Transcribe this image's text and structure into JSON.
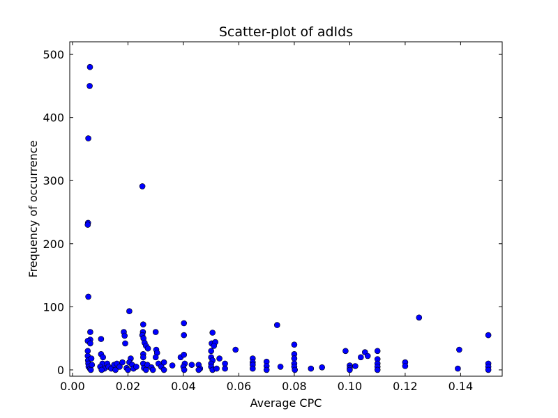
{
  "chart_data": {
    "type": "scatter",
    "title": "Scatter-plot of adIds",
    "xlabel": "Average CPC",
    "ylabel": "Frequency of occurrence",
    "xlim": [
      -0.001,
      0.155
    ],
    "ylim": [
      -10,
      520
    ],
    "xticks": [
      0.0,
      0.02,
      0.04,
      0.06,
      0.08,
      0.1,
      0.12,
      0.14
    ],
    "xtick_labels": [
      "0.00",
      "0.02",
      "0.04",
      "0.06",
      "0.08",
      "0.10",
      "0.12",
      "0.14"
    ],
    "yticks": [
      0,
      100,
      200,
      300,
      400,
      500
    ],
    "ytick_labels": [
      "0",
      "100",
      "200",
      "300",
      "400",
      "500"
    ],
    "grid": false,
    "marker_color": "#0000ff",
    "marker_edge_color": "#000000",
    "points": [
      [
        0.0063,
        480
      ],
      [
        0.0062,
        450
      ],
      [
        0.0057,
        367
      ],
      [
        0.0056,
        233
      ],
      [
        0.0055,
        230
      ],
      [
        0.0057,
        116
      ],
      [
        0.0064,
        60
      ],
      [
        0.0064,
        48
      ],
      [
        0.0055,
        46
      ],
      [
        0.0064,
        42
      ],
      [
        0.0055,
        30
      ],
      [
        0.0055,
        22
      ],
      [
        0.0056,
        15
      ],
      [
        0.0057,
        10
      ],
      [
        0.0058,
        5
      ],
      [
        0.0063,
        2
      ],
      [
        0.0066,
        0
      ],
      [
        0.007,
        8
      ],
      [
        0.0068,
        18
      ],
      [
        0.0103,
        49
      ],
      [
        0.0103,
        25
      ],
      [
        0.011,
        20
      ],
      [
        0.0108,
        10
      ],
      [
        0.01,
        5
      ],
      [
        0.0115,
        2
      ],
      [
        0.0105,
        0
      ],
      [
        0.0125,
        10
      ],
      [
        0.013,
        5
      ],
      [
        0.014,
        2
      ],
      [
        0.015,
        8
      ],
      [
        0.0155,
        0
      ],
      [
        0.016,
        10
      ],
      [
        0.017,
        5
      ],
      [
        0.018,
        12
      ],
      [
        0.0185,
        60
      ],
      [
        0.0188,
        54
      ],
      [
        0.019,
        42
      ],
      [
        0.0195,
        3
      ],
      [
        0.02,
        0
      ],
      [
        0.0205,
        93
      ],
      [
        0.021,
        18
      ],
      [
        0.0205,
        12
      ],
      [
        0.0215,
        8
      ],
      [
        0.022,
        2
      ],
      [
        0.023,
        5
      ],
      [
        0.0252,
        291
      ],
      [
        0.0255,
        72
      ],
      [
        0.0254,
        60
      ],
      [
        0.0252,
        55
      ],
      [
        0.0256,
        50
      ],
      [
        0.026,
        43
      ],
      [
        0.0265,
        38
      ],
      [
        0.0272,
        34
      ],
      [
        0.0255,
        25
      ],
      [
        0.0255,
        20
      ],
      [
        0.0255,
        10
      ],
      [
        0.0258,
        3
      ],
      [
        0.0265,
        0
      ],
      [
        0.027,
        8
      ],
      [
        0.0285,
        4
      ],
      [
        0.029,
        0
      ],
      [
        0.03,
        60
      ],
      [
        0.0302,
        32
      ],
      [
        0.0305,
        27
      ],
      [
        0.03,
        20
      ],
      [
        0.031,
        10
      ],
      [
        0.032,
        5
      ],
      [
        0.033,
        12
      ],
      [
        0.033,
        0
      ],
      [
        0.036,
        7
      ],
      [
        0.039,
        20
      ],
      [
        0.0402,
        74
      ],
      [
        0.0402,
        55
      ],
      [
        0.0402,
        24
      ],
      [
        0.0405,
        10
      ],
      [
        0.04,
        5
      ],
      [
        0.0403,
        0
      ],
      [
        0.043,
        8
      ],
      [
        0.0455,
        8
      ],
      [
        0.046,
        2
      ],
      [
        0.0455,
        0
      ],
      [
        0.0505,
        59
      ],
      [
        0.0502,
        42
      ],
      [
        0.0515,
        44
      ],
      [
        0.051,
        38
      ],
      [
        0.05,
        30
      ],
      [
        0.05,
        20
      ],
      [
        0.0505,
        15
      ],
      [
        0.05,
        10
      ],
      [
        0.05,
        5
      ],
      [
        0.0505,
        0
      ],
      [
        0.052,
        2
      ],
      [
        0.053,
        18
      ],
      [
        0.055,
        10
      ],
      [
        0.055,
        2
      ],
      [
        0.0588,
        32
      ],
      [
        0.065,
        18
      ],
      [
        0.065,
        12
      ],
      [
        0.065,
        8
      ],
      [
        0.065,
        2
      ],
      [
        0.07,
        13
      ],
      [
        0.07,
        6
      ],
      [
        0.07,
        0
      ],
      [
        0.0738,
        71
      ],
      [
        0.075,
        5
      ],
      [
        0.08,
        40
      ],
      [
        0.08,
        25
      ],
      [
        0.08,
        18
      ],
      [
        0.08,
        10
      ],
      [
        0.08,
        5
      ],
      [
        0.0802,
        0
      ],
      [
        0.086,
        2
      ],
      [
        0.09,
        4
      ],
      [
        0.0985,
        30
      ],
      [
        0.1,
        7
      ],
      [
        0.1,
        3
      ],
      [
        0.1,
        0
      ],
      [
        0.102,
        6
      ],
      [
        0.104,
        20
      ],
      [
        0.1055,
        28
      ],
      [
        0.1065,
        22
      ],
      [
        0.11,
        30
      ],
      [
        0.11,
        17
      ],
      [
        0.11,
        10
      ],
      [
        0.11,
        5
      ],
      [
        0.11,
        0
      ],
      [
        0.12,
        12
      ],
      [
        0.12,
        6
      ],
      [
        0.125,
        83
      ],
      [
        0.139,
        2
      ],
      [
        0.1395,
        32
      ],
      [
        0.15,
        55
      ],
      [
        0.15,
        10
      ],
      [
        0.15,
        5
      ],
      [
        0.15,
        0
      ]
    ]
  }
}
